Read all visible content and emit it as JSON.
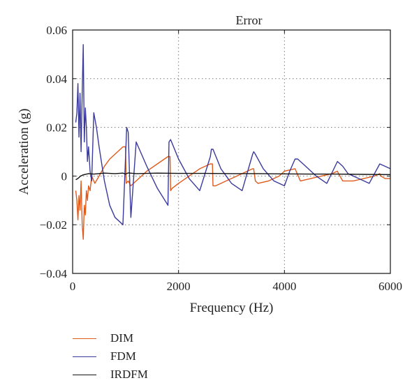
{
  "chart_data": {
    "type": "line",
    "title": "Error",
    "xlabel": "Frequency (Hz)",
    "ylabel": "Acceleration (g)",
    "xlim": [
      0,
      6000
    ],
    "ylim": [
      -0.04,
      0.06
    ],
    "x_ticks": [
      0,
      2000,
      4000,
      6000
    ],
    "x_tick_labels": [
      "0",
      "2000",
      "4000",
      "6000"
    ],
    "y_ticks": [
      -0.04,
      -0.02,
      0,
      0.02,
      0.04,
      0.06
    ],
    "y_tick_labels": [
      "−0.04",
      "−0.02",
      "0",
      "0.02",
      "0.04",
      "0.06"
    ],
    "grid": true,
    "legend_position": "below",
    "series": [
      {
        "name": "DIM",
        "color": "#e05a1c",
        "x": [
          60,
          80,
          100,
          120,
          140,
          160,
          180,
          200,
          220,
          240,
          260,
          280,
          300,
          330,
          360,
          420,
          500,
          600,
          700,
          800,
          900,
          950,
          1000,
          1010,
          1050,
          1100,
          1200,
          1400,
          1600,
          1800,
          1840,
          1850,
          1880,
          2000,
          2200,
          2400,
          2600,
          2640,
          2650,
          2700,
          2900,
          3100,
          3300,
          3400,
          3420,
          3450,
          3500,
          3700,
          3900,
          4000,
          4200,
          4220,
          4300,
          4500,
          4700,
          4900,
          5000,
          5020,
          5100,
          5300,
          5500,
          5700,
          5800,
          5820,
          5900,
          6000
        ],
        "y": [
          -0.006,
          -0.01,
          -0.018,
          -0.008,
          -0.014,
          -0.002,
          -0.02,
          -0.026,
          -0.012,
          -0.016,
          -0.006,
          -0.01,
          -0.004,
          -0.006,
          0.0,
          -0.003,
          0.0,
          0.004,
          0.007,
          0.009,
          0.011,
          0.012,
          0.012,
          -0.003,
          -0.002,
          -0.004,
          -0.002,
          0.002,
          0.005,
          0.008,
          0.008,
          -0.006,
          -0.005,
          -0.003,
          0.0,
          0.003,
          0.005,
          0.005,
          -0.004,
          -0.004,
          -0.002,
          0.0,
          0.002,
          0.003,
          0.003,
          -0.002,
          -0.003,
          -0.002,
          0.0,
          0.002,
          0.003,
          0.002,
          -0.002,
          -0.001,
          0.0,
          0.001,
          0.002,
          0.001,
          -0.002,
          -0.002,
          -0.001,
          0.0,
          0.001,
          0.0,
          -0.001,
          -0.001
        ]
      },
      {
        "name": "FDM",
        "color": "#3a3a9c",
        "x": [
          60,
          80,
          100,
          120,
          140,
          160,
          180,
          200,
          220,
          240,
          260,
          280,
          300,
          330,
          360,
          380,
          400,
          450,
          500,
          600,
          700,
          800,
          900,
          950,
          1000,
          1020,
          1050,
          1100,
          1200,
          1400,
          1600,
          1800,
          1820,
          1850,
          2000,
          2200,
          2400,
          2600,
          2620,
          2650,
          2800,
          3000,
          3200,
          3400,
          3420,
          3450,
          3600,
          3800,
          4000,
          4100,
          4200,
          4250,
          4400,
          4600,
          4800,
          5000,
          5100,
          5200,
          5400,
          5600,
          5800,
          5900,
          6000
        ],
        "y": [
          0.022,
          0.026,
          0.038,
          0.016,
          0.034,
          0.01,
          0.034,
          0.054,
          0.014,
          0.028,
          0.02,
          0.006,
          0.012,
          0.002,
          -0.002,
          0.012,
          0.026,
          0.02,
          0.012,
          -0.002,
          -0.012,
          -0.017,
          -0.019,
          -0.02,
          0.008,
          0.02,
          0.018,
          -0.017,
          0.014,
          0.004,
          -0.005,
          -0.012,
          0.014,
          0.015,
          0.007,
          -0.001,
          -0.006,
          0.008,
          0.011,
          0.011,
          0.003,
          -0.003,
          -0.006,
          0.009,
          0.01,
          0.009,
          0.003,
          -0.002,
          -0.004,
          0.002,
          0.007,
          0.007,
          0.004,
          0.0,
          -0.003,
          0.006,
          0.004,
          0.001,
          -0.001,
          -0.003,
          0.005,
          0.004,
          0.003
        ]
      },
      {
        "name": "IRDFM",
        "color": "#111111",
        "x": [
          60,
          100,
          150,
          200,
          300,
          400,
          600,
          800,
          950,
          1000,
          1050,
          1200,
          1600,
          2000,
          2500,
          3000,
          3500,
          4000,
          4500,
          5000,
          5500,
          6000
        ],
        "y": [
          -0.0015,
          -0.001,
          0.0,
          0.0005,
          0.001,
          0.0008,
          0.0012,
          0.001,
          0.0012,
          0.0008,
          0.0013,
          0.001,
          0.0012,
          0.0011,
          0.0011,
          0.001,
          0.001,
          0.0009,
          0.0008,
          0.0008,
          0.0007,
          0.0006
        ]
      }
    ]
  }
}
